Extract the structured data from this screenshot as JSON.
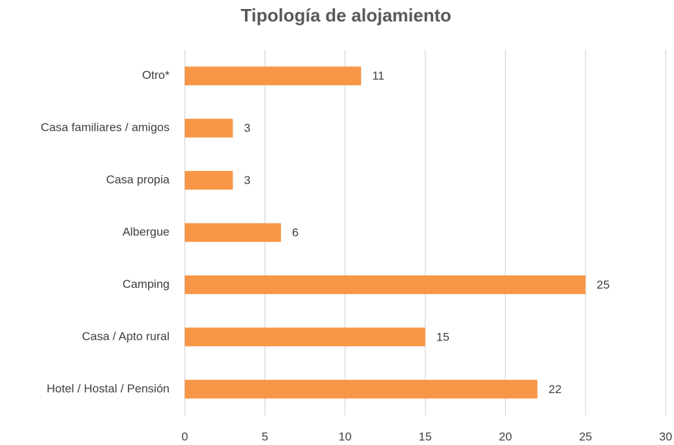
{
  "chart_data": {
    "type": "hbar",
    "title": "Tipología de alojamiento",
    "categories": [
      "Hotel / Hostal / Pensión",
      "Casa / Apto rural",
      "Camping",
      "Albergue",
      "Casa propia",
      "Casa familiares / amigos",
      "Otro*"
    ],
    "values": [
      22,
      15,
      25,
      6,
      3,
      3,
      11
    ],
    "color": "#f79646",
    "xlim": [
      0,
      30
    ],
    "xticks": [
      0,
      5,
      10,
      15,
      20,
      25,
      30
    ],
    "grid": true
  }
}
